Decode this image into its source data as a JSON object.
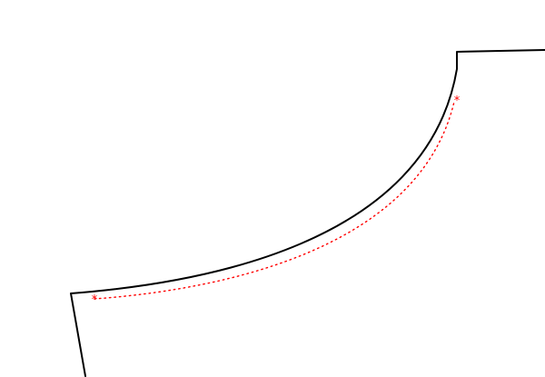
{
  "diagram": {
    "outline_color": "#000000",
    "seam_line_color": "#ff0000",
    "seam_line_style": "dotted",
    "marker_symbol": "*",
    "marker_color": "#ff0000",
    "markers": [
      {
        "name": "seam-start-marker"
      },
      {
        "name": "seam-end-marker"
      }
    ]
  }
}
